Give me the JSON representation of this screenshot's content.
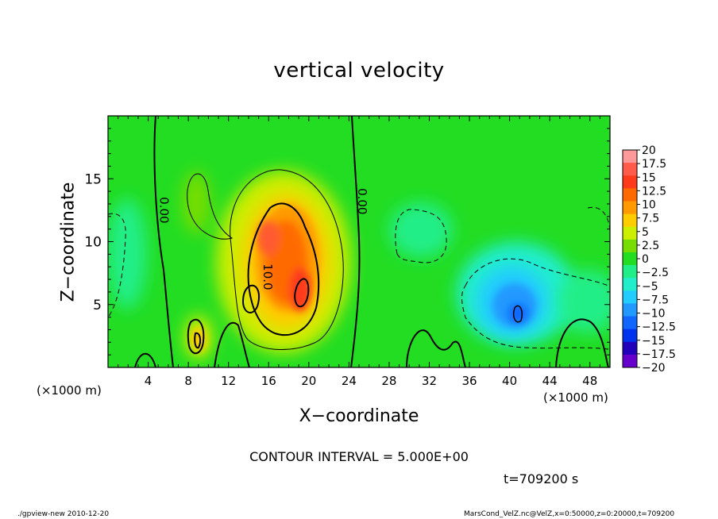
{
  "header": {
    "title": "vertical velocity"
  },
  "axes": {
    "xlabel": "X−coordinate",
    "ylabel": "Z−coordinate",
    "x_unit_left": "(×1000 m)",
    "x_unit_right": "(×1000 m)"
  },
  "footer": {
    "contour_interval": "CONTOUR INTERVAL = 5.000E+00",
    "time": "t=709200 s",
    "program": "./gpview-new   2010-12-20",
    "source": "MarsCond_VelZ.nc@VelZ,x=0:50000,z=0:20000,t=709200"
  },
  "colors": {
    "background_field": "#22dd22",
    "contour_line": "#000000",
    "frame": "#000000"
  },
  "chart_data": {
    "type": "heatmap",
    "title": "vertical velocity",
    "xlabel": "X−coordinate",
    "ylabel": "Z−coordinate",
    "xlim": [
      0,
      50
    ],
    "ylim": [
      0,
      20
    ],
    "x_ticks": [
      4,
      8,
      12,
      16,
      20,
      24,
      28,
      32,
      36,
      40,
      44,
      48
    ],
    "y_ticks": [
      5,
      10,
      15
    ],
    "contour_labels": [
      {
        "text": "0.00",
        "x": 5.2,
        "z": 12.5
      },
      {
        "text": "0.00",
        "x": 24.9,
        "z": 13.2
      },
      {
        "text": "10.0",
        "x": 15.5,
        "z": 7.2
      }
    ],
    "colorbar": {
      "levels": [
        20,
        17.5,
        15,
        12.5,
        10,
        7.5,
        5,
        2.5,
        0,
        -2.5,
        -5,
        -7.5,
        -10,
        -12.5,
        -15,
        -17.5,
        -20
      ],
      "labels": [
        "20",
        "17.5",
        "15",
        "12.5",
        "10",
        "7.5",
        "5",
        "2.5",
        "0",
        "−2.5",
        "−5",
        "−7.5",
        "−10",
        "−12.5",
        "−15",
        "−17.5",
        "−20"
      ],
      "colors": [
        "#ff9999",
        "#ff5a4a",
        "#ff3a1a",
        "#ff6a00",
        "#ff9a00",
        "#ffcc00",
        "#ccee00",
        "#77dd00",
        "#22dd22",
        "#22ee88",
        "#22eecc",
        "#22ccff",
        "#2299ff",
        "#1166ff",
        "#0033ee",
        "#2200bb",
        "#6600cc"
      ]
    },
    "features": [
      {
        "kind": "updraft",
        "x": 18.0,
        "z": 8.5,
        "peak": 14
      },
      {
        "kind": "updraft",
        "x": 9.0,
        "z": 2.3,
        "peak": 7
      },
      {
        "kind": "downdraft",
        "x": 41.0,
        "z": 4.5,
        "peak": -10
      }
    ]
  }
}
